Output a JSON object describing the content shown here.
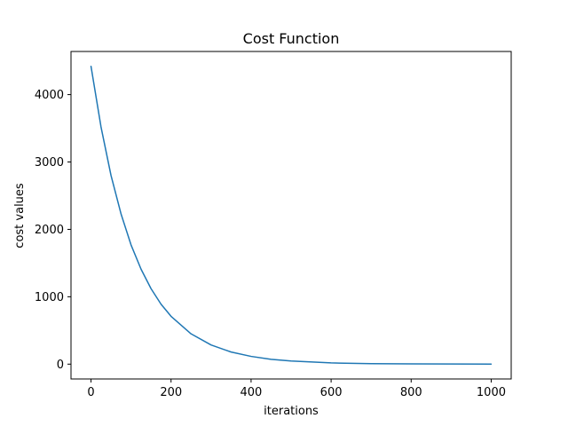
{
  "chart_data": {
    "type": "line",
    "title": "Cost Function",
    "xlabel": "iterations",
    "ylabel": "cost values",
    "xlim": [
      -50,
      1050
    ],
    "ylim": [
      -220,
      4640
    ],
    "xticks": [
      0,
      200,
      400,
      600,
      800,
      1000
    ],
    "yticks": [
      0,
      1000,
      2000,
      3000,
      4000
    ],
    "grid": false,
    "legend": "none",
    "series": [
      {
        "color": "#1f77b4",
        "x": [
          0,
          25,
          50,
          75,
          100,
          125,
          150,
          175,
          200,
          250,
          300,
          350,
          400,
          450,
          500,
          600,
          700,
          800,
          900,
          1000
        ],
        "y": [
          4420,
          3520,
          2800,
          2230,
          1770,
          1410,
          1120,
          890,
          710,
          450,
          285,
          180,
          115,
          72,
          46,
          18,
          8,
          4,
          2,
          1
        ]
      }
    ]
  }
}
